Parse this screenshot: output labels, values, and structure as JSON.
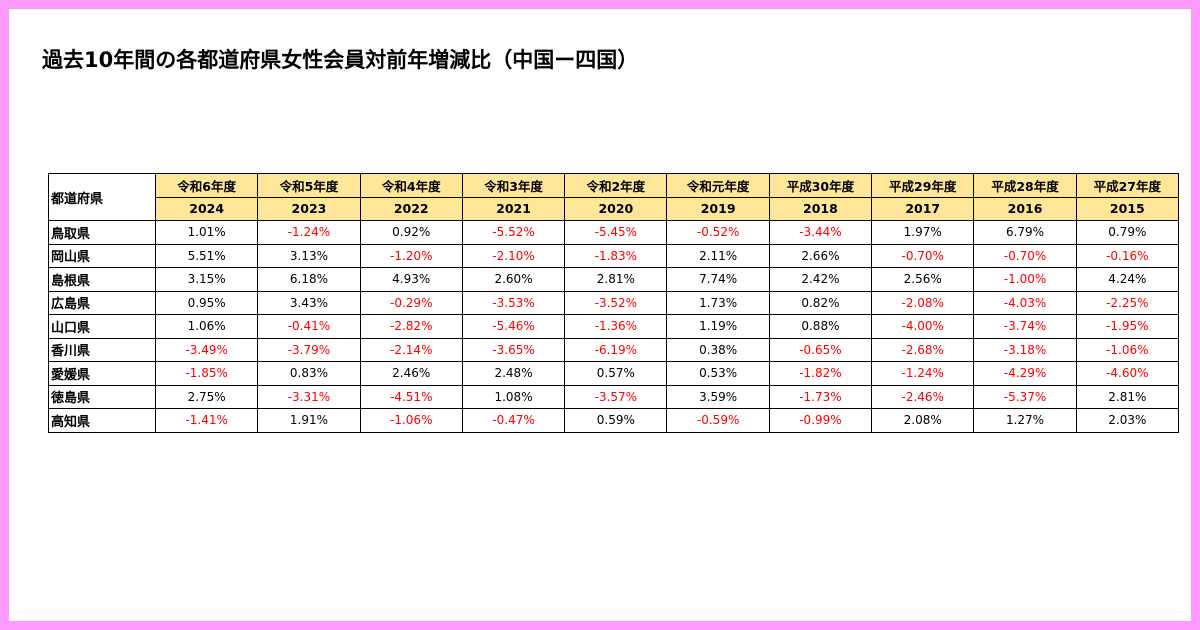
{
  "title": "過去10年間の各都道府県女性会員対前年増減比（中国ー四国）",
  "table": {
    "corner_label": "都道府県",
    "era_headers": [
      "令和6年度",
      "令和5年度",
      "令和4年度",
      "令和3年度",
      "令和2年度",
      "令和元年度",
      "平成30年度",
      "平成29年度",
      "平成28年度",
      "平成27年度"
    ],
    "year_headers": [
      "2024",
      "2023",
      "2022",
      "2021",
      "2020",
      "2019",
      "2018",
      "2017",
      "2016",
      "2015"
    ],
    "negative_color": "#ff0000",
    "header_color": "#ffe699",
    "rows": [
      {
        "pref": "鳥取県",
        "values": [
          "1.01%",
          "-1.24%",
          "0.92%",
          "-5.52%",
          "-5.45%",
          "-0.52%",
          "-3.44%",
          "1.97%",
          "6.79%",
          "0.79%"
        ]
      },
      {
        "pref": "岡山県",
        "values": [
          "5.51%",
          "3.13%",
          "-1.20%",
          "-2.10%",
          "-1.83%",
          "2.11%",
          "2.66%",
          "-0.70%",
          "-0.70%",
          "-0.16%"
        ]
      },
      {
        "pref": "島根県",
        "values": [
          "3.15%",
          "6.18%",
          "4.93%",
          "2.60%",
          "2.81%",
          "7.74%",
          "2.42%",
          "2.56%",
          "-1.00%",
          "4.24%"
        ]
      },
      {
        "pref": "広島県",
        "values": [
          "0.95%",
          "3.43%",
          "-0.29%",
          "-3.53%",
          "-3.52%",
          "1.73%",
          "0.82%",
          "-2.08%",
          "-4.03%",
          "-2.25%"
        ]
      },
      {
        "pref": "山口県",
        "values": [
          "1.06%",
          "-0.41%",
          "-2.82%",
          "-5.46%",
          "-1.36%",
          "1.19%",
          "0.88%",
          "-4.00%",
          "-3.74%",
          "-1.95%"
        ]
      },
      {
        "pref": "香川県",
        "values": [
          "-3.49%",
          "-3.79%",
          "-2.14%",
          "-3.65%",
          "-6.19%",
          "0.38%",
          "-0.65%",
          "-2.68%",
          "-3.18%",
          "-1.06%"
        ]
      },
      {
        "pref": "愛媛県",
        "values": [
          "-1.85%",
          "0.83%",
          "2.46%",
          "2.48%",
          "0.57%",
          "0.53%",
          "-1.82%",
          "-1.24%",
          "-4.29%",
          "-4.60%"
        ]
      },
      {
        "pref": "徳島県",
        "values": [
          "2.75%",
          "-3.31%",
          "-4.51%",
          "1.08%",
          "-3.57%",
          "3.59%",
          "-1.73%",
          "-2.46%",
          "-5.37%",
          "2.81%"
        ]
      },
      {
        "pref": "高知県",
        "values": [
          "-1.41%",
          "1.91%",
          "-1.06%",
          "-0.47%",
          "0.59%",
          "-0.59%",
          "-0.99%",
          "2.08%",
          "1.27%",
          "2.03%"
        ]
      }
    ]
  }
}
